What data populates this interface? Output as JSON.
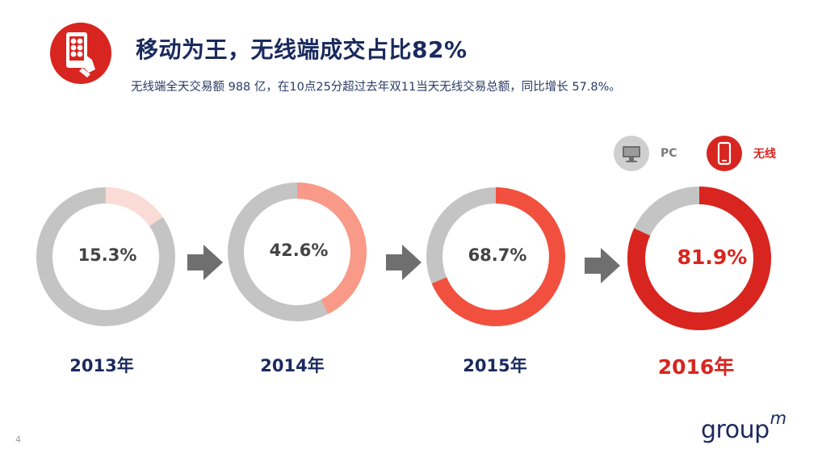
{
  "header": {
    "title": "移动为王，无线端成交占比82%",
    "subtitle": "无线端全天交易额 988 亿，在10点25分超过去年双11当天无线交易总额，同比增长 57.8%。"
  },
  "legend": [
    {
      "label": "PC",
      "icon": "desktop-icon",
      "color": "#cfcfcf"
    },
    {
      "label": "无线",
      "icon": "smartphone-icon",
      "color": "#d8251f"
    }
  ],
  "chart_data": {
    "type": "pie",
    "variant": "donut",
    "categories": [
      "2013年",
      "2014年",
      "2015年",
      "2016年"
    ],
    "series": [
      {
        "name": "无线",
        "values": [
          15.3,
          42.6,
          68.7,
          81.9
        ]
      },
      {
        "name": "PC",
        "values": [
          84.7,
          57.4,
          31.3,
          18.1
        ]
      }
    ],
    "value_labels": [
      "15.3%",
      "42.6%",
      "68.7%",
      "81.9%"
    ],
    "mobile_colors": [
      "#fadbd6",
      "#f99a88",
      "#f2503f",
      "#d8251f"
    ],
    "pc_color": "#c4c4c4",
    "highlight": "2016年"
  },
  "footer": {
    "brand": "group",
    "brand_mark": "m",
    "page_number": "4"
  }
}
